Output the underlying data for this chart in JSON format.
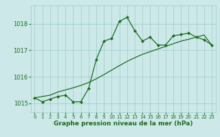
{
  "x": [
    0,
    1,
    2,
    3,
    4,
    5,
    6,
    7,
    8,
    9,
    10,
    11,
    12,
    13,
    14,
    15,
    16,
    17,
    18,
    19,
    20,
    21,
    22,
    23
  ],
  "y_main": [
    1015.2,
    1015.05,
    1015.15,
    1015.25,
    1015.3,
    1015.05,
    1015.05,
    1015.55,
    1016.65,
    1017.35,
    1017.45,
    1018.1,
    1018.25,
    1017.75,
    1017.35,
    1017.5,
    1017.2,
    1017.2,
    1017.55,
    1017.6,
    1017.65,
    1017.5,
    1017.4,
    1017.2
  ],
  "y_trend": [
    1015.2,
    1015.25,
    1015.3,
    1015.42,
    1015.5,
    1015.58,
    1015.67,
    1015.78,
    1015.92,
    1016.08,
    1016.25,
    1016.42,
    1016.58,
    1016.72,
    1016.85,
    1016.95,
    1017.05,
    1017.15,
    1017.25,
    1017.35,
    1017.42,
    1017.5,
    1017.58,
    1017.2
  ],
  "ylim": [
    1014.65,
    1018.7
  ],
  "yticks": [
    1015,
    1016,
    1017,
    1018
  ],
  "xticks": [
    0,
    1,
    2,
    3,
    4,
    5,
    6,
    7,
    8,
    9,
    10,
    11,
    12,
    13,
    14,
    15,
    16,
    17,
    18,
    19,
    20,
    21,
    22,
    23
  ],
  "xlabel": "Graphe pression niveau de la mer (hPa)",
  "line_color": "#1a6b1a",
  "bg_color": "#cce8e8",
  "grid_color": "#99cccc",
  "marker": "D"
}
